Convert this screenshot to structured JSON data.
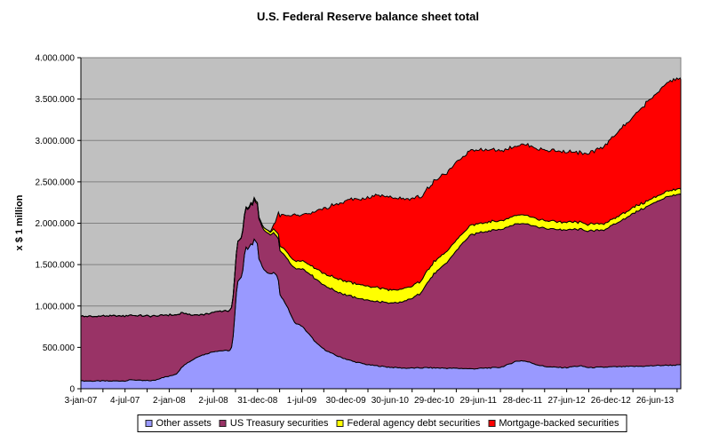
{
  "chart_data": {
    "type": "area",
    "stacked": true,
    "title": "U.S. Federal Reserve balance sheet total",
    "ylabel": "x $ 1 million",
    "xlabel": "",
    "ylim": [
      0,
      4000000
    ],
    "ytick_interval": 500000,
    "ytick_labels": [
      "0",
      "500.000",
      "1.000.000",
      "1.500.000",
      "2.000.000",
      "2.500.000",
      "3.000.000",
      "3.500.000",
      "4.000.000"
    ],
    "grid": true,
    "plot_bg": "#C0C0C0",
    "grid_color": "#808080",
    "border_color": "#808080",
    "legend_position": "bottom",
    "x_unit": "months since Jan 2007",
    "xlim": [
      0,
      81.5
    ],
    "xticks": [
      {
        "t": 0,
        "label": "3-jan-07"
      },
      {
        "t": 6,
        "label": "4-jul-07"
      },
      {
        "t": 12,
        "label": "2-jan-08"
      },
      {
        "t": 18,
        "label": "2-jul-08"
      },
      {
        "t": 24,
        "label": "31-dec-08"
      },
      {
        "t": 30,
        "label": "1-jul-09"
      },
      {
        "t": 36,
        "label": "30-dec-09"
      },
      {
        "t": 42,
        "label": "30-jun-10"
      },
      {
        "t": 48,
        "label": "29-dec-10"
      },
      {
        "t": 54,
        "label": "29-jun-11"
      },
      {
        "t": 60,
        "label": "28-dec-11"
      },
      {
        "t": 66,
        "label": "27-jun-12"
      },
      {
        "t": 72,
        "label": "26-dec-12"
      },
      {
        "t": 78,
        "label": "26-jun-13"
      }
    ],
    "minor_xtick_step": 3,
    "x": [
      0,
      1,
      2,
      3,
      4,
      5,
      6,
      7,
      8,
      9,
      10,
      11,
      12,
      13,
      14,
      15,
      16,
      17,
      18,
      19,
      20,
      20.3,
      20.55,
      20.8,
      21,
      21.25,
      21.5,
      21.7,
      21.95,
      22.15,
      22.4,
      22.6,
      22.85,
      23.05,
      23.3,
      23.55,
      23.75,
      24,
      24.2,
      24.45,
      24.65,
      24.9,
      25.35,
      25.8,
      26.3,
      26.8,
      27,
      28,
      29,
      30,
      31,
      32,
      33,
      34,
      35,
      36,
      37,
      38,
      39,
      40,
      41,
      42,
      43,
      44,
      45,
      46,
      47,
      48,
      49,
      50,
      51,
      52,
      53,
      54,
      55,
      56,
      57,
      58,
      59,
      60,
      61,
      62,
      63,
      64,
      65,
      66,
      67,
      68,
      69,
      70,
      71,
      72,
      73,
      74,
      75,
      76,
      77,
      78,
      79,
      80,
      81.5
    ],
    "series": [
      {
        "name": "Other assets",
        "color": "#9999FF",
        "values": [
          95000,
          95000,
          93000,
          95000,
          93000,
          95000,
          96000,
          110000,
          100000,
          98000,
          100000,
          136000,
          150000,
          183000,
          290000,
          340000,
          395000,
          420000,
          450000,
          460000,
          462000,
          465000,
          516000,
          734000,
          1020000,
          1290000,
          1330000,
          1328000,
          1390000,
          1570000,
          1726000,
          1680000,
          1710000,
          1750000,
          1735000,
          1810000,
          1780000,
          1745000,
          1570000,
          1520000,
          1480000,
          1440000,
          1400000,
          1385000,
          1405000,
          1340000,
          1150000,
          1000000,
          800000,
          760000,
          660000,
          550000,
          480000,
          430000,
          390000,
          360000,
          330000,
          310000,
          290000,
          280000,
          270000,
          260000,
          255000,
          250000,
          250000,
          252000,
          255000,
          252000,
          250000,
          248000,
          248000,
          245000,
          240000,
          245000,
          250000,
          255000,
          260000,
          290000,
          330000,
          340000,
          320000,
          290000,
          270000,
          262000,
          258000,
          255000,
          270000,
          275000,
          255000,
          258000,
          260000,
          265000,
          265000,
          268000,
          270000,
          272000,
          275000,
          280000,
          282000,
          285000,
          287000
        ]
      },
      {
        "name": "US Treasury securities",
        "color": "#993366",
        "values": [
          779000,
          780000,
          780000,
          783000,
          785000,
          785000,
          786000,
          780000,
          780000,
          780000,
          778000,
          755000,
          740000,
          713000,
          630000,
          549000,
          505000,
          479000,
          479000,
          479000,
          480000,
          480000,
          480000,
          480000,
          478000,
          477000,
          476000,
          476000,
          476000,
          476000,
          476000,
          476000,
          476000,
          476000,
          476000,
          476000,
          476000,
          476000,
          475000,
          475000,
          475000,
          475000,
          474000,
          474000,
          474000,
          485000,
          526000,
          578000,
          653000,
          695000,
          736000,
          769000,
          774000,
          776000,
          776000,
          777000,
          777000,
          777000,
          777000,
          777000,
          777000,
          777000,
          777000,
          811000,
          842000,
          891000,
          1016000,
          1138000,
          1214000,
          1305000,
          1420000,
          1530000,
          1617000,
          1640000,
          1650000,
          1665000,
          1663000,
          1663000,
          1663000,
          1663000,
          1663000,
          1667000,
          1667000,
          1667000,
          1667000,
          1662000,
          1656000,
          1649000,
          1650000,
          1652000,
          1657000,
          1697000,
          1742000,
          1794000,
          1843000,
          1892000,
          1928000,
          1972000,
          2012000,
          2047000,
          2055000
        ]
      },
      {
        "name": "Federal agency debt securities",
        "color": "#FFFF00",
        "values": [
          0,
          0,
          0,
          0,
          0,
          0,
          0,
          0,
          0,
          0,
          0,
          0,
          0,
          0,
          0,
          0,
          0,
          0,
          0,
          0,
          0,
          0,
          0,
          0,
          0,
          0,
          0,
          5000,
          12000,
          12000,
          12000,
          13000,
          14000,
          15000,
          16000,
          20000,
          20000,
          20000,
          21000,
          22000,
          25000,
          33000,
          36000,
          38000,
          44000,
          52000,
          56000,
          79000,
          92000,
          100000,
          109000,
          129000,
          141000,
          150000,
          160000,
          165000,
          167000,
          169000,
          169000,
          168000,
          165000,
          160000,
          156000,
          152000,
          149000,
          147000,
          147000,
          144000,
          139000,
          132000,
          125000,
          118000,
          115000,
          112000,
          110000,
          108000,
          106000,
          105000,
          104000,
          102000,
          100000,
          96000,
          95000,
          94000,
          92000,
          90000,
          87000,
          83000,
          80000,
          79000,
          77000,
          75000,
          74000,
          74000,
          72000,
          69000,
          66000,
          65000,
          64000,
          64000,
          63000
        ]
      },
      {
        "name": "Mortgage-backed securities",
        "color": "#FF0000",
        "values": [
          0,
          0,
          0,
          0,
          0,
          0,
          0,
          0,
          0,
          0,
          0,
          0,
          0,
          0,
          0,
          0,
          0,
          0,
          0,
          0,
          0,
          0,
          0,
          0,
          0,
          0,
          0,
          0,
          0,
          0,
          0,
          0,
          0,
          0,
          0,
          0,
          0,
          0,
          0,
          0,
          0,
          0,
          0,
          7000,
          69000,
          236000,
          366000,
          431000,
          553000,
          545000,
          609000,
          693000,
          776000,
          852000,
          908000,
          968000,
          1025000,
          1026000,
          1069000,
          1117000,
          1118000,
          1116000,
          1110000,
          1079000,
          1056000,
          1022000,
          992000,
          972000,
          958000,
          944000,
          935000,
          921000,
          909000,
          898000,
          880000,
          865000,
          852000,
          845000,
          837000,
          848000,
          855000,
          850000,
          853000,
          852000,
          855000,
          852000,
          843000,
          835000,
          852000,
          886000,
          927000,
          983000,
          1024000,
          1057000,
          1095000,
          1143000,
          1201000,
          1231000,
          1281000,
          1330000,
          1330000
        ]
      }
    ]
  }
}
